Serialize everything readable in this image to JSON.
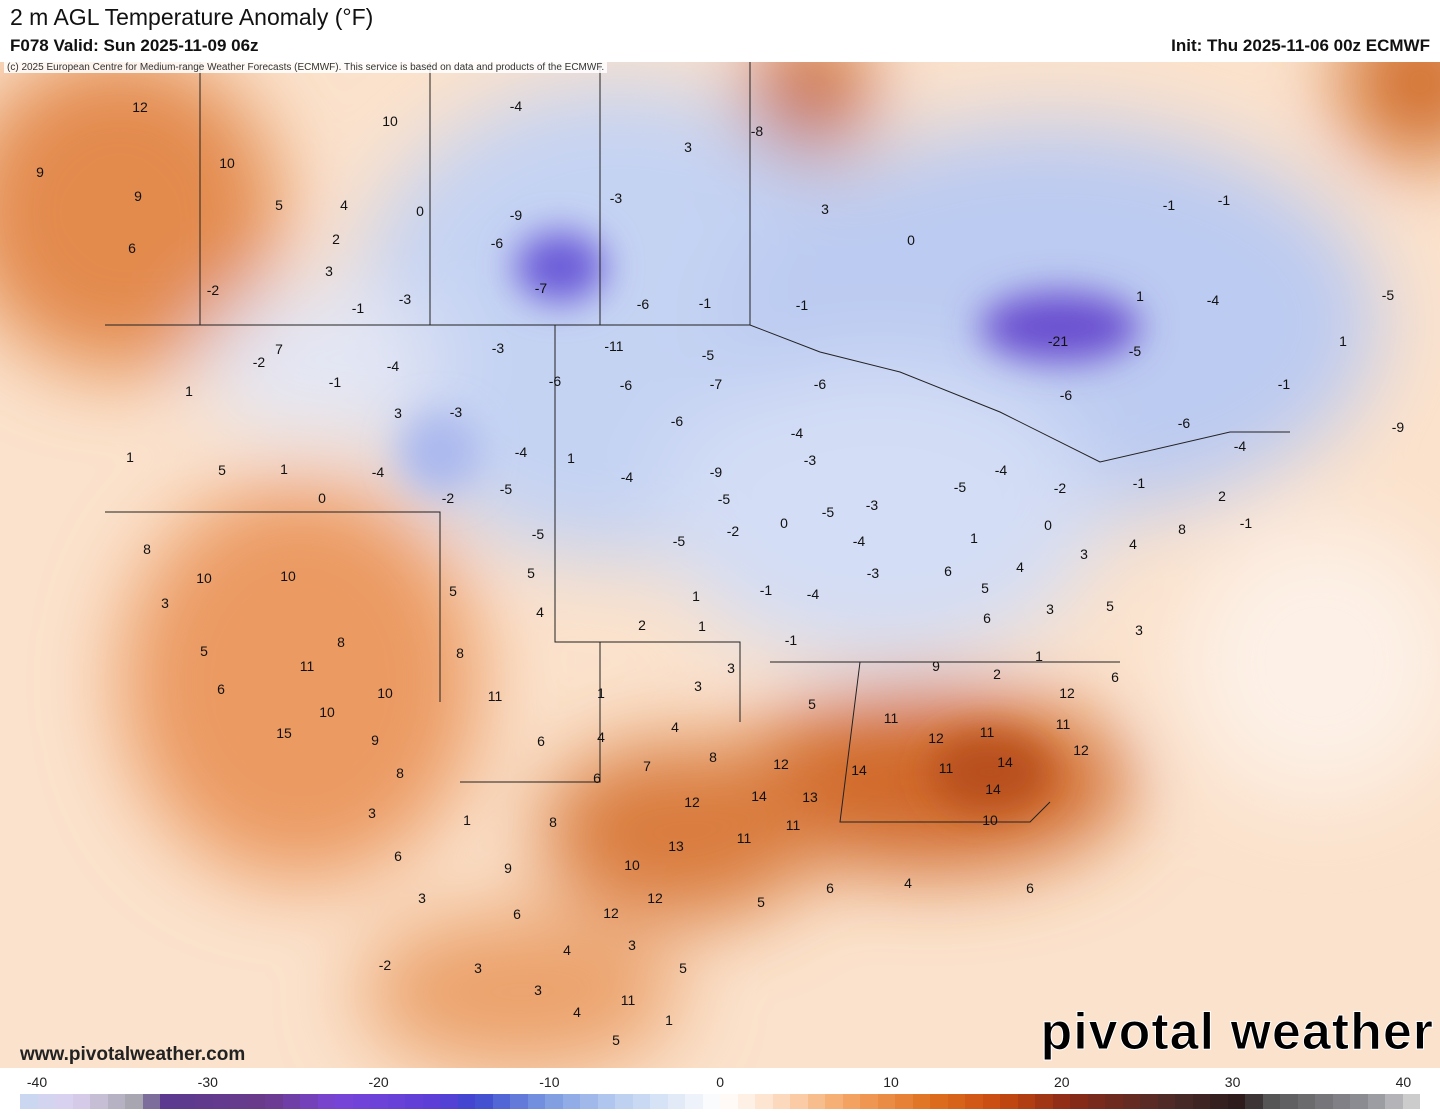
{
  "header": {
    "title": "2 m AGL Temperature Anomaly (°F)",
    "valid": "F078 Valid: Sun 2025-11-09 06z",
    "init": "Init: Thu 2025-11-06 00z ECMWF"
  },
  "credit": "(c) 2025 European Centre for Medium-range Weather Forecasts (ECMWF). This service is based on data and products of the ECMWF.",
  "website": "www.pivotalweather.com",
  "watermark": "pivotal weather",
  "colorbar": {
    "units": "°F",
    "ticks": [
      "-40",
      "-30",
      "-20",
      "-10",
      "0",
      "10",
      "20",
      "30",
      "40"
    ],
    "range": [
      -40,
      40
    ],
    "colors": {
      "very_cold": "#d8d0f0",
      "cold_purple": "#7a45d8",
      "cold_blue": "#3c48d0",
      "cool": "#bcd0f0",
      "neutral": "#ffffff",
      "warm": "#f5a868",
      "hot": "#c85010",
      "very_hot": "#3a2020",
      "extreme": "#a0a0a8"
    }
  },
  "anomaly_labels": [
    12,
    10,
    10,
    9,
    9,
    5,
    4,
    0,
    2,
    6,
    3,
    -2,
    -1,
    -3,
    -4,
    -8,
    3,
    -9,
    -6,
    -7,
    -6,
    -1,
    -3,
    3,
    0,
    -1,
    -21,
    1,
    -1,
    -1,
    -4,
    -5,
    -5,
    1,
    -1,
    -6,
    -6,
    -4,
    -9,
    -2,
    7,
    1,
    -1,
    -4,
    -3,
    -11,
    -5,
    -6,
    -6,
    -7,
    -6,
    3,
    -3,
    1,
    5,
    1,
    -4,
    -4,
    1,
    -5,
    -2,
    0,
    -4,
    -6,
    -9,
    -5,
    -3,
    -4,
    -5,
    -4,
    -2,
    -1,
    2,
    -1,
    8,
    4,
    3,
    -5,
    -5,
    5,
    4,
    5,
    0,
    -5,
    -3,
    -4,
    -3,
    -2,
    1,
    0,
    4,
    6,
    5,
    6,
    3,
    5,
    3,
    -1,
    -4,
    -1,
    1,
    2,
    1,
    8,
    10,
    10,
    3,
    5,
    6,
    8,
    8,
    11,
    1,
    3,
    3,
    5,
    9,
    2,
    1,
    6,
    12,
    11,
    12,
    11,
    12,
    11,
    11,
    14,
    14,
    14,
    13,
    12,
    14,
    11,
    11,
    10,
    12,
    13,
    7,
    8,
    4,
    6,
    4,
    6,
    10,
    9,
    8,
    15,
    10,
    11,
    3,
    6,
    1,
    8,
    10,
    9,
    12,
    12,
    6,
    3,
    4,
    3,
    5,
    5,
    6,
    4,
    6,
    3,
    3,
    11,
    1,
    -2,
    5,
    4
  ]
}
